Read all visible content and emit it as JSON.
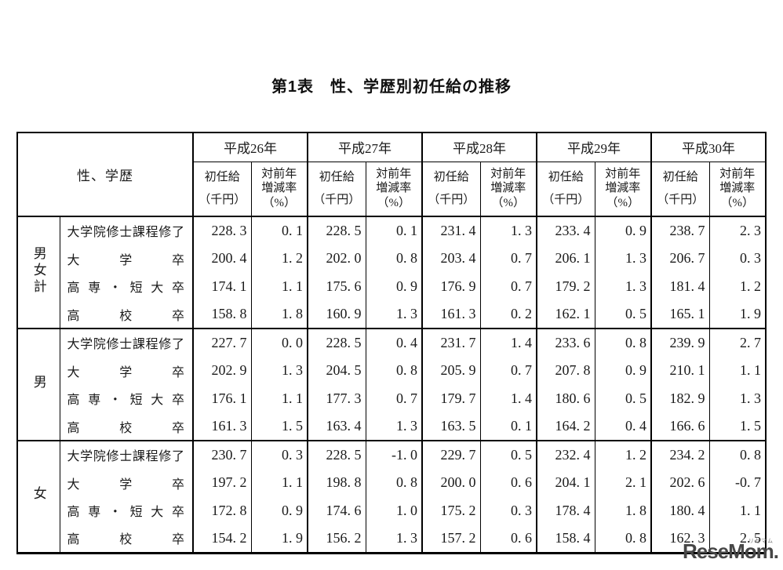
{
  "page": {
    "background": "#ffffff",
    "text_color": "#1a1a1a",
    "border_color": "#000000"
  },
  "title": "第1表　性、学歴別初任給の推移",
  "table": {
    "corner_header": "性、学歴",
    "years": [
      "平成26年",
      "平成27年",
      "平成28年",
      "平成29年",
      "平成30年"
    ],
    "subheaders": {
      "salary_lines": [
        "初任給",
        "（千円）"
      ],
      "rate_lines": [
        "対前年",
        "増減率",
        "（%）"
      ]
    },
    "column_meaning_per_year": [
      "初任給（千円）",
      "対前年増減率（%）"
    ],
    "groups": [
      {
        "label": "男女計",
        "rows": [
          {
            "education": "大学院修士課程修了",
            "values": [
              "228.3",
              "0.1",
              "228.5",
              "0.1",
              "231.4",
              "1.3",
              "233.4",
              "0.9",
              "238.7",
              "2.3"
            ]
          },
          {
            "education": "大学卒",
            "values": [
              "200.4",
              "1.2",
              "202.0",
              "0.8",
              "203.4",
              "0.7",
              "206.1",
              "1.3",
              "206.7",
              "0.3"
            ]
          },
          {
            "education": "高専・短大卒",
            "values": [
              "174.1",
              "1.1",
              "175.6",
              "0.9",
              "176.9",
              "0.7",
              "179.2",
              "1.3",
              "181.4",
              "1.2"
            ]
          },
          {
            "education": "高校卒",
            "values": [
              "158.8",
              "1.8",
              "160.9",
              "1.3",
              "161.3",
              "0.2",
              "162.1",
              "0.5",
              "165.1",
              "1.9"
            ]
          }
        ]
      },
      {
        "label": "男",
        "rows": [
          {
            "education": "大学院修士課程修了",
            "values": [
              "227.7",
              "0.0",
              "228.5",
              "0.4",
              "231.7",
              "1.4",
              "233.6",
              "0.8",
              "239.9",
              "2.7"
            ]
          },
          {
            "education": "大学卒",
            "values": [
              "202.9",
              "1.3",
              "204.5",
              "0.8",
              "205.9",
              "0.7",
              "207.8",
              "0.9",
              "210.1",
              "1.1"
            ]
          },
          {
            "education": "高専・短大卒",
            "values": [
              "176.1",
              "1.1",
              "177.3",
              "0.7",
              "179.7",
              "1.4",
              "180.6",
              "0.5",
              "182.9",
              "1.3"
            ]
          },
          {
            "education": "高校卒",
            "values": [
              "161.3",
              "1.5",
              "163.4",
              "1.3",
              "163.5",
              "0.1",
              "164.2",
              "0.4",
              "166.6",
              "1.5"
            ]
          }
        ]
      },
      {
        "label": "女",
        "rows": [
          {
            "education": "大学院修士課程修了",
            "values": [
              "230.7",
              "0.3",
              "228.5",
              "-1.0",
              "229.7",
              "0.5",
              "232.4",
              "1.2",
              "234.2",
              "0.8"
            ]
          },
          {
            "education": "大学卒",
            "values": [
              "197.2",
              "1.1",
              "198.8",
              "0.8",
              "200.0",
              "0.6",
              "204.1",
              "2.1",
              "202.6",
              "-0.7"
            ]
          },
          {
            "education": "高専・短大卒",
            "values": [
              "172.8",
              "0.9",
              "174.6",
              "1.0",
              "175.2",
              "0.3",
              "178.4",
              "1.8",
              "180.4",
              "1.1"
            ]
          },
          {
            "education": "高校卒",
            "values": [
              "154.2",
              "1.9",
              "156.2",
              "1.3",
              "157.2",
              "0.6",
              "158.4",
              "0.8",
              "162.3",
              "2.5"
            ]
          }
        ]
      }
    ]
  },
  "watermark": {
    "logo": "ReseMom.",
    "ruby": "リセマム",
    "color": "#474747"
  }
}
